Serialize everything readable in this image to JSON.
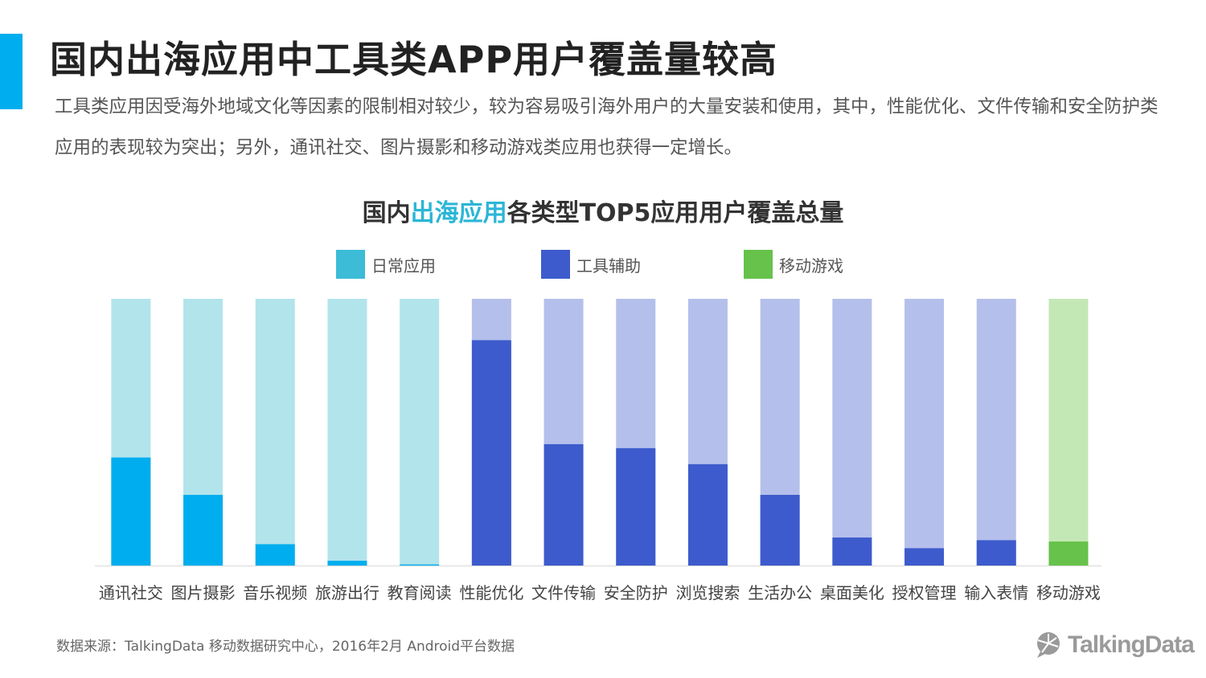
{
  "page": {
    "title": "国内出海应用中工具类APP用户覆盖量较高",
    "subtitle": "工具类应用因受海外地域文化等因素的限制相对较少，较为容易吸引海外用户的大量安装和使用，其中，性能优化、文件传输和安全防护类应用的表现较为突出；另外，通讯社交、图片摄影和移动游戏类应用也获得一定增长。",
    "source": "数据来源：TalkingData 移动数据研究中心，2016年2月 Android平台数据",
    "logo": "TalkingData",
    "accent_color": "#00aeef"
  },
  "chart_data": {
    "type": "bar",
    "title_parts": [
      "国内",
      "出海应用",
      "各类型TOP5应用用户覆盖总量"
    ],
    "legend": [
      {
        "name": "日常应用",
        "color": "#3cbcd6"
      },
      {
        "name": "工具辅助",
        "color": "#3d5bcc"
      },
      {
        "name": "移动游戏",
        "color": "#66c24a"
      }
    ],
    "categories": [
      "通讯社交",
      "图片摄影",
      "音乐视频",
      "旅游出行",
      "教育阅读",
      "性能优化",
      "文件传输",
      "安全防护",
      "浏览搜索",
      "生活办公",
      "桌面美化",
      "授权管理",
      "输入表情",
      "移动游戏"
    ],
    "groups": [
      "日常应用",
      "日常应用",
      "日常应用",
      "日常应用",
      "日常应用",
      "工具辅助",
      "工具辅助",
      "工具辅助",
      "工具辅助",
      "工具辅助",
      "工具辅助",
      "工具辅助",
      "工具辅助",
      "移动游戏"
    ],
    "values": [
      40.5,
      26.5,
      8,
      1.8,
      0.4,
      84.5,
      45.5,
      44,
      38,
      26.5,
      10.5,
      6.5,
      9.5,
      9
    ],
    "ylim": [
      0,
      100
    ],
    "series_colors": {
      "日常应用": {
        "fill": "#00aeef",
        "track": "#b2e4ec"
      },
      "工具辅助": {
        "fill": "#3d5bcc",
        "track": "#b4bfeb"
      },
      "移动游戏": {
        "fill": "#66c24a",
        "track": "#c3e8b5"
      }
    },
    "xlabel": "",
    "ylabel": "",
    "grid": false
  }
}
